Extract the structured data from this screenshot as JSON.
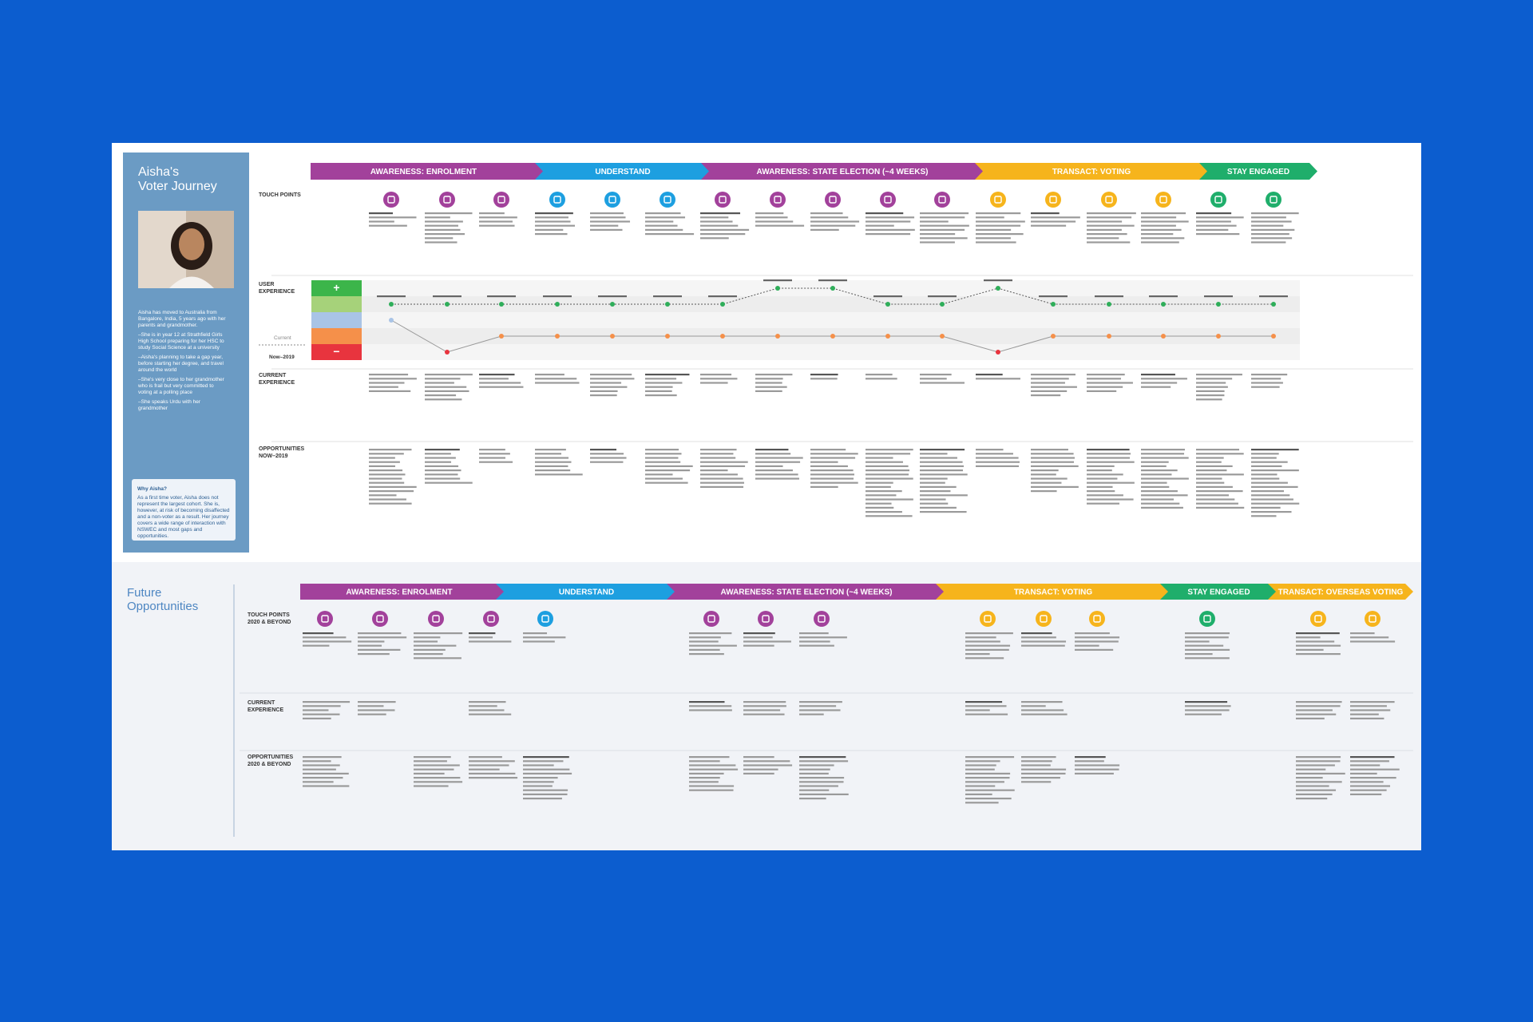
{
  "persona": {
    "title_lines": [
      "Aisha's",
      "Voter Journey"
    ],
    "description": [
      "Aisha has moved to Australia from Bangalore, India, 5 years ago with her parents and grandmother.",
      "–She is in year 12 at Strathfield Girls High School preparing for her HSC to study Social Science at a university",
      "–Aisha's planning to take a gap year, before starting her degree, and travel around the world",
      "–She's very close to her grandmother who is frail but very committed to voting at a polling place",
      "–She speaks Urdu with her grandmother"
    ],
    "why_title": "Why Aisha?",
    "why_text": "As a first time voter, Aisha does not represent the largest cohort. She is, however, at risk of becoming disaffected and a non-voter as a result. Her journey covers a wide range of interaction with NSWEC and most gaps and opportunities."
  },
  "now": {
    "phases": [
      {
        "name": "AWARENESS: ENROLMENT",
        "color": "#a2419b"
      },
      {
        "name": "UNDERSTAND",
        "color": "#1d9fe0"
      },
      {
        "name": "AWARENESS: STATE ELECTION (~4 WEEKS)",
        "color": "#a2419b"
      },
      {
        "name": "TRANSACT: VOTING",
        "color": "#f6b41c"
      },
      {
        "name": "STAY ENGAGED",
        "color": "#1fae6b"
      }
    ],
    "row_labels": [
      "TOUCH POINTS",
      "USER EXPERIENCE",
      "CURRENT EXPERIENCE",
      "OPPORTUNITIES NOW–2019"
    ],
    "touch_point_colors": [
      "#a2419b",
      "#a2419b",
      "#a2419b",
      "#1d9fe0",
      "#1d9fe0",
      "#1d9fe0",
      "#a2419b",
      "#a2419b",
      "#a2419b",
      "#a2419b",
      "#a2419b",
      "#f6b41c",
      "#f6b41c",
      "#f6b41c",
      "#f6b41c",
      "#1fae6b",
      "#1fae6b"
    ],
    "ux": {
      "plus": "+",
      "minus": "−",
      "current_label": "Current",
      "period_label": "Now–2019",
      "band_colors": [
        "#e8343e",
        "#f5904a",
        "#a9c4e6",
        "#a6d27a",
        "#3cb54a"
      ],
      "future_color": "#2fae5a",
      "future_levels": [
        4,
        4,
        4,
        4,
        4,
        4,
        4,
        5,
        5,
        4,
        4,
        5,
        4,
        4,
        4,
        4,
        4
      ],
      "current_levels": [
        3,
        1,
        2,
        2,
        2,
        2,
        2,
        2,
        2,
        2,
        2,
        1,
        2,
        2,
        2,
        2,
        2
      ]
    }
  },
  "future": {
    "title": "Future Opportunities",
    "phases": [
      {
        "name": "AWARENESS: ENROLMENT",
        "color": "#a2419b"
      },
      {
        "name": "UNDERSTAND",
        "color": "#1d9fe0"
      },
      {
        "name": "AWARENESS: STATE ELECTION (~4 WEEKS)",
        "color": "#a2419b"
      },
      {
        "name": "TRANSACT: VOTING",
        "color": "#f6b41c"
      },
      {
        "name": "STAY ENGAGED",
        "color": "#1fae6b"
      },
      {
        "name": "TRANSACT: OVERSEAS VOTING",
        "color": "#f6b41c"
      }
    ],
    "row_labels": [
      "TOUCH POINTS 2020 & BEYOND",
      "CURRENT EXPERIENCE",
      "OPPORTUNITIES 2020 & BEYOND"
    ],
    "touch_point_colors": [
      "#a2419b",
      "#a2419b",
      "#a2419b",
      "#a2419b",
      "#1d9fe0",
      "#a2419b",
      "#a2419b",
      "#a2419b",
      "#f6b41c",
      "#f6b41c",
      "#f6b41c",
      "#1fae6b",
      "#f6b41c",
      "#f6b41c"
    ]
  }
}
